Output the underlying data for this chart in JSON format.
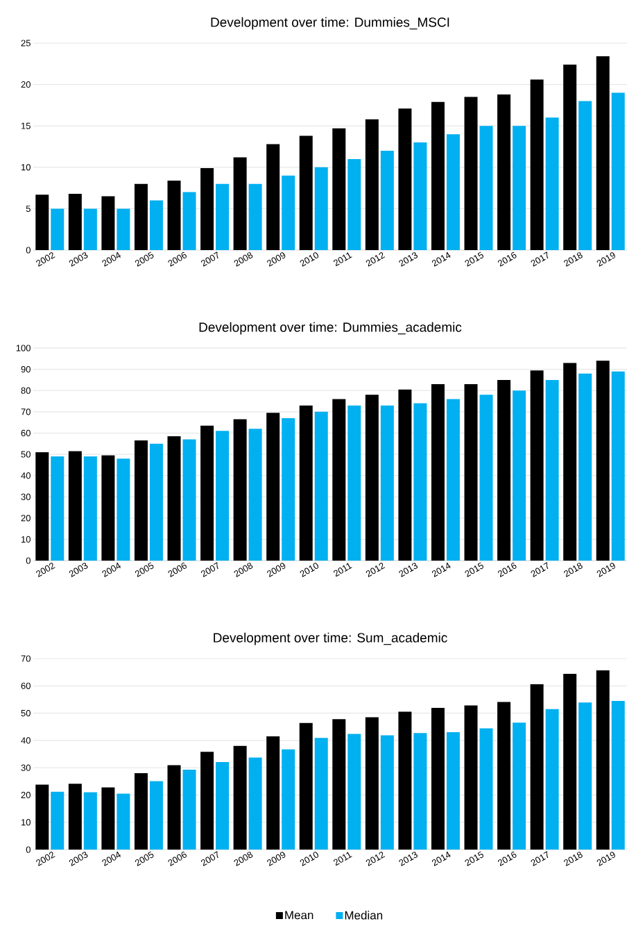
{
  "chart_data": [
    {
      "type": "bar",
      "title": "Development over time: Dummies_MSCI",
      "categories": [
        "2002",
        "2003",
        "2004",
        "2005",
        "2006",
        "2007",
        "2008",
        "2009",
        "2010",
        "2011",
        "2012",
        "2013",
        "2014",
        "2015",
        "2016",
        "2017",
        "2018",
        "2019"
      ],
      "series": [
        {
          "color": "#000000",
          "values": [
            6.7,
            6.8,
            6.5,
            8.0,
            8.4,
            9.9,
            11.2,
            12.8,
            13.8,
            14.7,
            15.8,
            17.1,
            17.9,
            18.5,
            18.8,
            20.6,
            22.4,
            23.4
          ]
        },
        {
          "color": "#00b0f0",
          "values": [
            5,
            5,
            5,
            6,
            7,
            8,
            8,
            9,
            10,
            11,
            12,
            13,
            14,
            15,
            15,
            16,
            18,
            19
          ]
        }
      ],
      "ylim": [
        0,
        25
      ],
      "yticks": [
        0,
        5,
        10,
        15,
        20,
        25
      ],
      "grid": "y"
    },
    {
      "type": "bar",
      "title": "Development over time: Dummies_academic",
      "categories": [
        "2002",
        "2003",
        "2004",
        "2005",
        "2006",
        "2007",
        "2008",
        "2009",
        "2010",
        "2011",
        "2012",
        "2013",
        "2014",
        "2015",
        "2016",
        "2017",
        "2018",
        "2019"
      ],
      "series": [
        {
          "color": "#000000",
          "values": [
            51,
            51.5,
            49.5,
            56.5,
            58.5,
            63.5,
            66.5,
            69.5,
            73,
            76,
            78,
            80.5,
            83,
            83,
            85,
            89.5,
            93,
            94
          ]
        },
        {
          "color": "#00b0f0",
          "values": [
            49,
            49,
            48,
            55,
            57,
            61,
            62,
            67,
            70,
            73,
            73,
            74,
            76,
            78,
            80,
            85,
            88,
            89
          ]
        }
      ],
      "ylim": [
        0,
        100
      ],
      "yticks": [
        0,
        10,
        20,
        30,
        40,
        50,
        60,
        70,
        80,
        90,
        100
      ],
      "grid": "y"
    },
    {
      "type": "bar",
      "title": "Development over time: Sum_academic",
      "categories": [
        "2002",
        "2003",
        "2004",
        "2005",
        "2006",
        "2007",
        "2008",
        "2009",
        "2010",
        "2011",
        "2012",
        "2013",
        "2014",
        "2015",
        "2016",
        "2017",
        "2018",
        "2019"
      ],
      "series": [
        {
          "name": "Mean",
          "color": "#000000",
          "values": [
            23.8,
            24.1,
            22.8,
            28.0,
            30.9,
            35.8,
            38.0,
            41.5,
            46.4,
            47.8,
            48.5,
            50.5,
            51.9,
            52.8,
            54.1,
            60.6,
            64.4,
            65.7
          ]
        },
        {
          "name": "Median",
          "color": "#00b0f0",
          "values": [
            21.2,
            21.0,
            20.5,
            25.1,
            29.3,
            32.1,
            33.7,
            36.7,
            40.9,
            42.4,
            41.9,
            42.7,
            43.0,
            44.4,
            46.5,
            51.5,
            53.9,
            54.5
          ]
        }
      ],
      "ylim": [
        0,
        70
      ],
      "yticks": [
        0,
        10,
        20,
        30,
        40,
        50,
        60,
        70
      ],
      "grid": "y",
      "legend": "bottom"
    }
  ]
}
